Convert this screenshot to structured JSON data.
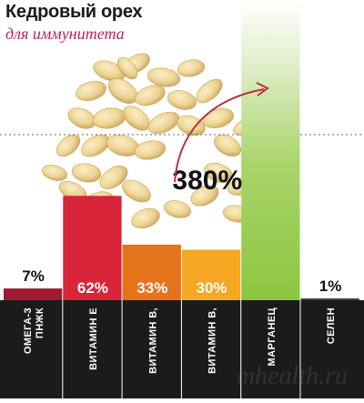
{
  "title": "Кедровый орех",
  "subtitle": "для иммунитета",
  "watermark": "mhealth.ru",
  "colors": {
    "series": [
      "#9e1b32",
      "#d9253a",
      "#e5731c",
      "#f5a623",
      "#8cc63f",
      "#3a3a3a"
    ],
    "axis_band": "#1b1b1b",
    "nuts": "#e8cf8f",
    "nuts_shadow": "#c9a55f"
  },
  "chart_data": {
    "type": "bar",
    "title": "Кедровый орех",
    "subtitle": "для иммунитета",
    "categories": [
      "ОМЕГА-3 ПНЖК",
      "ВИТАМИН Е",
      "ВИТАМИН B",
      "ВИТАМИН B",
      "МАРГАНЕЦ",
      "СЕЛЕН"
    ],
    "category_lines": [
      [
        "ОМЕГА-3",
        "ПНЖК"
      ],
      [
        "ВИТАМИН Е"
      ],
      [
        "ВИТАМИН B,"
      ],
      [
        "ВИТАМИН B,"
      ],
      [
        "МАРГАНЕЦ"
      ],
      [
        "СЕЛЕН"
      ]
    ],
    "values": [
      7,
      62,
      33,
      30,
      380,
      1
    ],
    "labels": [
      "7%",
      "62%",
      "33%",
      "30%",
      "380%",
      "1%"
    ],
    "xlabel": "",
    "ylabel": "",
    "grid": false,
    "legend": "none"
  }
}
